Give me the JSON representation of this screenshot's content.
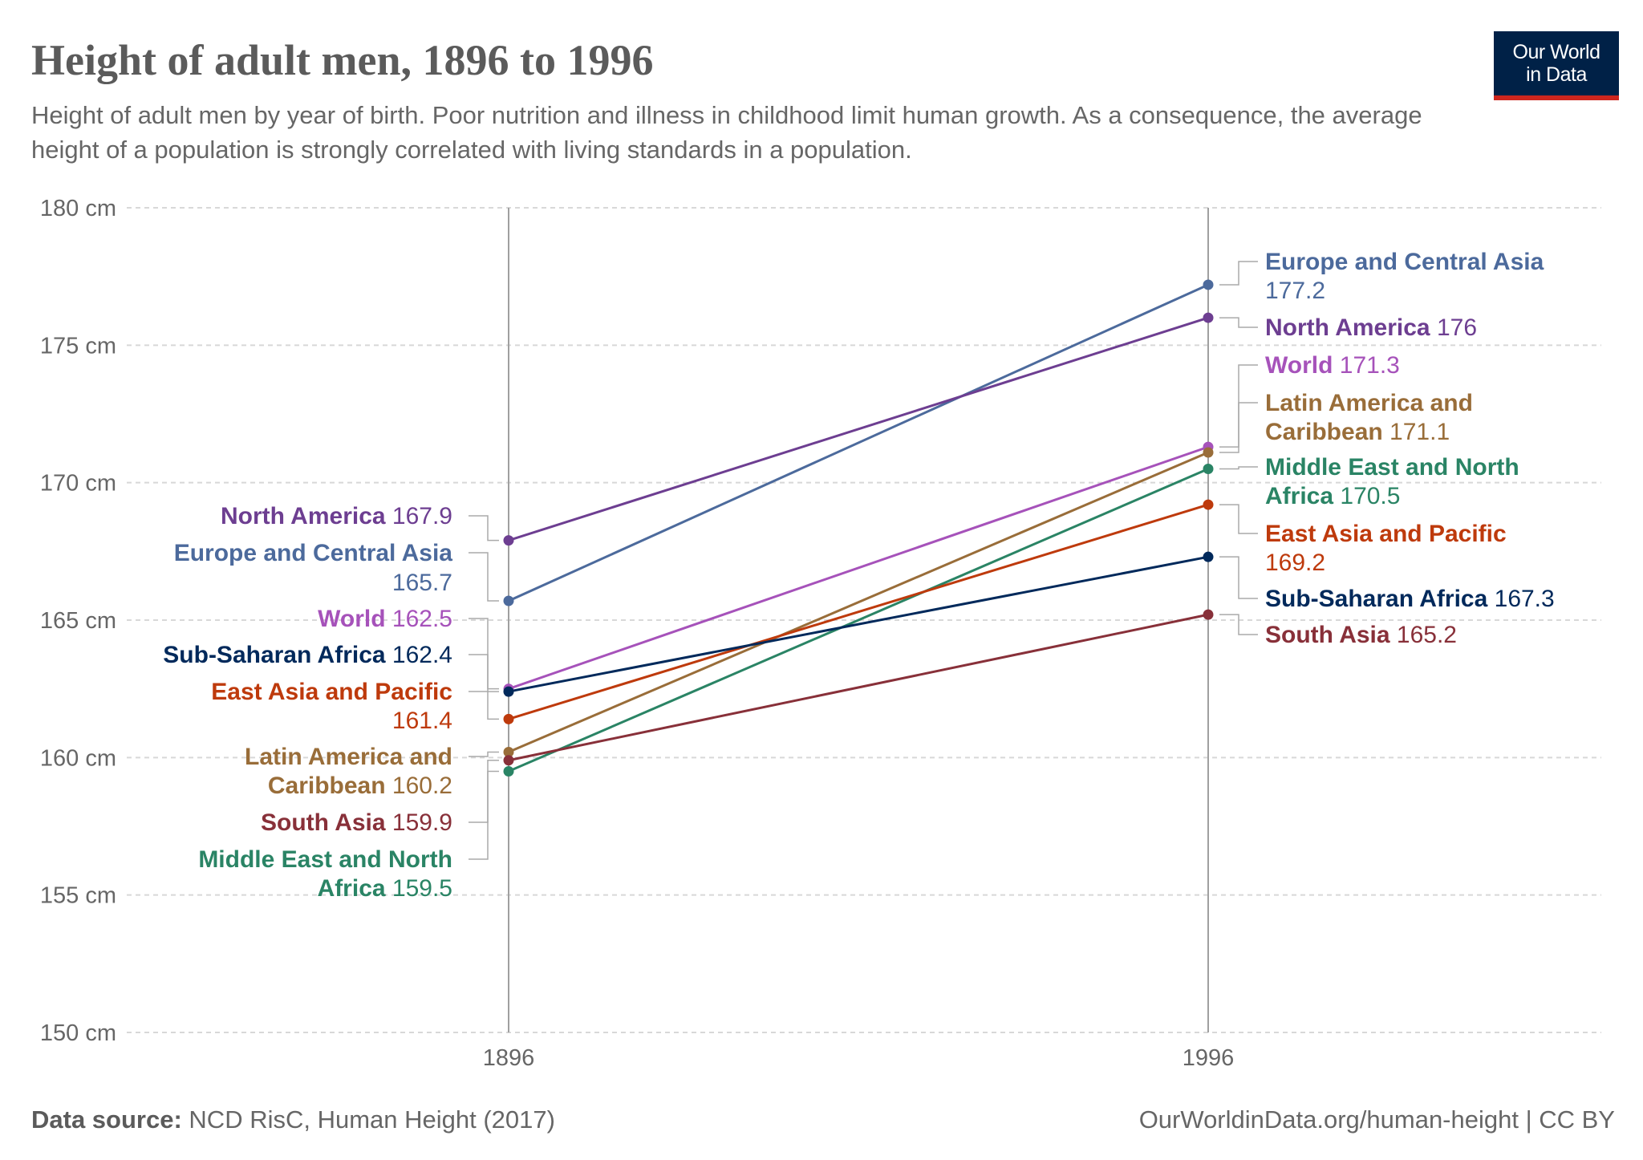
{
  "title": "Height of adult men, 1896 to 1996",
  "subtitle": "Height of adult men by year of birth. Poor nutrition and illness in childhood limit human growth. As a consequence, the average height of a population is strongly correlated with living standards in a population.",
  "logo": {
    "line1": "Our World",
    "line2": "in Data",
    "bg_color": "#002147",
    "accent_color": "#ce261e"
  },
  "footer": {
    "source_label": "Data source:",
    "source": "NCD RisC, Human Height (2017)",
    "url": "OurWorldinData.org/human-height | CC BY"
  },
  "chart_data": {
    "type": "line",
    "x": [
      1896,
      1996
    ],
    "x_tick_labels": [
      "1896",
      "1996"
    ],
    "y_ticks": [
      150,
      155,
      160,
      165,
      170,
      175,
      180
    ],
    "y_tick_labels": [
      "150 cm",
      "155 cm",
      "160 cm",
      "165 cm",
      "170 cm",
      "175 cm",
      "180 cm"
    ],
    "ylim": [
      150,
      180
    ],
    "grid": "horizontal dashed",
    "legend": "inline labels at both ends",
    "series": [
      {
        "name": "Europe and Central Asia",
        "values": [
          165.7,
          177.2
        ],
        "color": "#4c6a9c"
      },
      {
        "name": "North America",
        "values": [
          167.9,
          176
        ],
        "color": "#6d3e91"
      },
      {
        "name": "World",
        "values": [
          162.5,
          171.3
        ],
        "color": "#a652ba"
      },
      {
        "name": "Latin America and Caribbean",
        "values": [
          160.2,
          171.1
        ],
        "color": "#996d39"
      },
      {
        "name": "Middle East and North Africa",
        "values": [
          159.5,
          170.5
        ],
        "color": "#2a8465"
      },
      {
        "name": "East Asia and Pacific",
        "values": [
          161.4,
          169.2
        ],
        "color": "#be3a0c"
      },
      {
        "name": "Sub-Saharan Africa",
        "values": [
          162.4,
          167.3
        ],
        "color": "#00295b"
      },
      {
        "name": "South Asia",
        "values": [
          159.9,
          165.2
        ],
        "color": "#883039"
      }
    ],
    "value_labels": {
      "start": [
        "165.7",
        "167.9",
        "162.5",
        "160.2",
        "159.5",
        "161.4",
        "162.4",
        "159.9"
      ],
      "end": [
        "177.2",
        "176",
        "171.3",
        "171.1",
        "170.5",
        "169.2",
        "167.3",
        "165.2"
      ]
    }
  }
}
